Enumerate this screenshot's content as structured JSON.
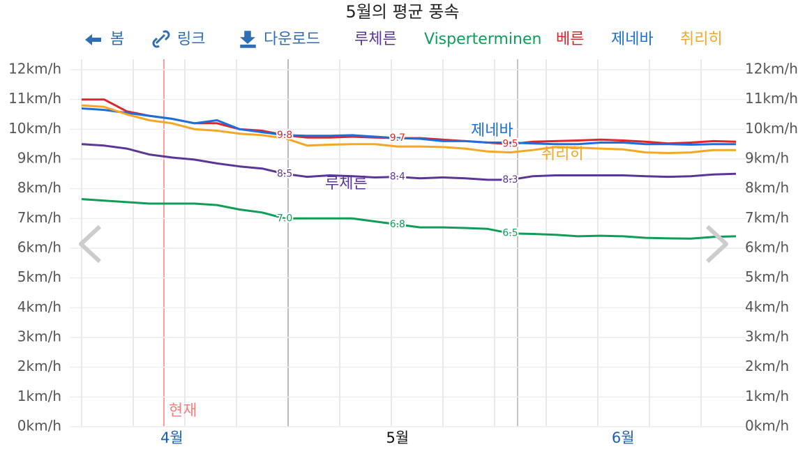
{
  "toolbar": [
    "봄",
    "링크",
    "다운로드"
  ],
  "chart_data": {
    "type": "line",
    "title": "5월의 평균 풍속",
    "now_label": "현재",
    "categories": [
      null,
      null,
      null,
      null,
      "4월",
      null,
      null,
      null,
      null,
      null,
      null,
      null,
      null,
      null,
      "5월",
      null,
      null,
      null,
      null,
      null,
      null,
      null,
      null,
      null,
      "6월",
      null,
      null,
      null,
      null,
      null
    ],
    "ylim": [
      0,
      12
    ],
    "yticks": [
      {
        "value": 0,
        "label": "0km/h"
      },
      {
        "value": 1,
        "label": "1km/h"
      },
      {
        "value": 2,
        "label": "2km/h"
      },
      {
        "value": 3,
        "label": "3km/h"
      },
      {
        "value": 4,
        "label": "4km/h"
      },
      {
        "value": 5,
        "label": "5km/h"
      },
      {
        "value": 6,
        "label": "6km/h"
      },
      {
        "value": 7,
        "label": "7km/h"
      },
      {
        "value": 8,
        "label": "8km/h"
      },
      {
        "value": 9,
        "label": "9km/h"
      },
      {
        "value": 10,
        "label": "10km/h"
      },
      {
        "value": 11,
        "label": "11km/h"
      },
      {
        "value": 12,
        "label": "12km/h"
      }
    ],
    "y2lim": [
      0,
      12
    ],
    "y2ticks": [
      {
        "value": 0,
        "label": "0km/h"
      },
      {
        "value": 1,
        "label": "1km/h"
      },
      {
        "value": 2,
        "label": "2km/h"
      },
      {
        "value": 3,
        "label": "3km/h"
      },
      {
        "value": 4,
        "label": "4km/h"
      },
      {
        "value": 5,
        "label": "5km/h"
      },
      {
        "value": 6,
        "label": "6km/h"
      },
      {
        "value": 7,
        "label": "7km/h"
      },
      {
        "value": 8,
        "label": "8km/h"
      },
      {
        "value": 9,
        "label": "9km/h"
      },
      {
        "value": 10,
        "label": "10km/h"
      },
      {
        "value": 11,
        "label": "11km/h"
      },
      {
        "value": 12,
        "label": "12km/h"
      }
    ],
    "grid": true,
    "series": [
      {
        "name": "루체른",
        "color": "#5b3696",
        "values": [
          9.5,
          9.45,
          9.35,
          9.15,
          9.05,
          8.98,
          8.85,
          8.75,
          8.68,
          8.5,
          8.4,
          8.45,
          8.42,
          8.38,
          8.4,
          8.35,
          8.38,
          8.35,
          8.3,
          8.3,
          8.42,
          8.45,
          8.45,
          8.45,
          8.45,
          8.42,
          8.4,
          8.42,
          8.48,
          8.5
        ],
        "value_labels": [
          null,
          null,
          null,
          null,
          null,
          null,
          null,
          null,
          null,
          "8.5",
          null,
          null,
          null,
          null,
          "8.4",
          null,
          null,
          null,
          null,
          "8.3",
          null,
          null,
          null,
          null,
          null,
          null,
          null,
          null,
          null,
          null
        ]
      },
      {
        "name": "Visperterminen",
        "color": "#0f9d58",
        "values": [
          7.65,
          7.6,
          7.55,
          7.5,
          7.5,
          7.5,
          7.45,
          7.3,
          7.2,
          7.0,
          7.0,
          7.0,
          7.0,
          6.9,
          6.8,
          6.7,
          6.7,
          6.68,
          6.65,
          6.5,
          6.48,
          6.45,
          6.4,
          6.42,
          6.4,
          6.35,
          6.33,
          6.32,
          6.38,
          6.4
        ],
        "value_labels": [
          null,
          null,
          null,
          null,
          null,
          null,
          null,
          null,
          null,
          "7.0",
          null,
          null,
          null,
          null,
          "6.8",
          null,
          null,
          null,
          null,
          "6.5",
          null,
          null,
          null,
          null,
          null,
          null,
          null,
          null,
          null,
          null
        ]
      },
      {
        "name": "베른",
        "color": "#e0242b",
        "values": [
          11.0,
          11.0,
          10.6,
          10.45,
          10.35,
          10.2,
          10.2,
          10.0,
          9.95,
          9.8,
          9.72,
          9.72,
          9.75,
          9.72,
          9.7,
          9.7,
          9.65,
          9.6,
          9.55,
          9.5,
          9.58,
          9.6,
          9.62,
          9.65,
          9.62,
          9.58,
          9.52,
          9.55,
          9.6,
          9.58
        ],
        "value_labels": [
          null,
          null,
          null,
          null,
          null,
          null,
          null,
          null,
          null,
          "9.8",
          null,
          null,
          null,
          null,
          "9.7",
          null,
          null,
          null,
          null,
          "9.5",
          null,
          null,
          null,
          null,
          null,
          null,
          null,
          null,
          null,
          null
        ]
      },
      {
        "name": "제네바",
        "color": "#1a6ee0",
        "values": [
          10.7,
          10.65,
          10.55,
          10.45,
          10.35,
          10.2,
          10.3,
          10.0,
          9.9,
          9.8,
          9.78,
          9.78,
          9.8,
          9.75,
          9.7,
          9.68,
          9.6,
          9.6,
          9.55,
          9.55,
          9.52,
          9.5,
          9.5,
          9.55,
          9.55,
          9.5,
          9.5,
          9.48,
          9.5,
          9.5
        ]
      },
      {
        "name": "취리히",
        "color": "#f5a623",
        "values": [
          10.8,
          10.75,
          10.5,
          10.3,
          10.2,
          10.0,
          9.95,
          9.85,
          9.8,
          9.7,
          9.45,
          9.48,
          9.5,
          9.5,
          9.42,
          9.42,
          9.4,
          9.35,
          9.25,
          9.22,
          9.3,
          9.4,
          9.38,
          9.35,
          9.32,
          9.22,
          9.2,
          9.22,
          9.3,
          9.3
        ]
      }
    ]
  }
}
